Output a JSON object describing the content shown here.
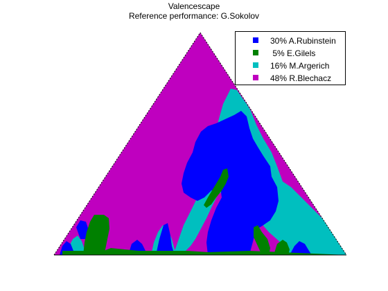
{
  "chart_data": {
    "type": "heatmap",
    "title": "Valencescape",
    "subtitle": "Reference performance: G.Sokolov",
    "legend_position": "top-right",
    "series": [
      {
        "name": "A.Rubinstein",
        "percent_label": "30%",
        "value": 30,
        "color": "#0000ff"
      },
      {
        "name": "E.Gilels",
        "percent_label": " 5%",
        "value": 5,
        "color": "#008000"
      },
      {
        "name": "M.Argerich",
        "percent_label": "16%",
        "value": 16,
        "color": "#00bfbf"
      },
      {
        "name": "R.Blechacz",
        "percent_label": "48%",
        "value": 48,
        "color": "#bf00bf"
      }
    ]
  }
}
